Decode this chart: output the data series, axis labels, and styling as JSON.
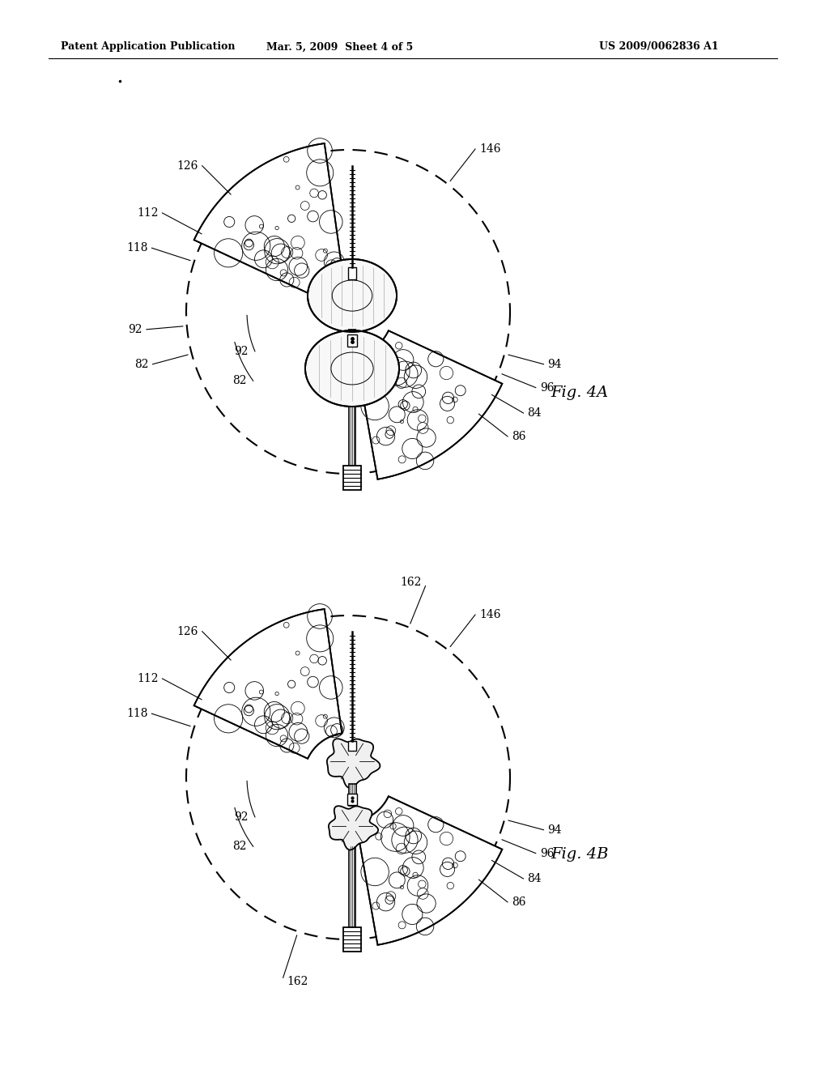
{
  "bg_color": "#ffffff",
  "header_left": "Patent Application Publication",
  "header_mid": "Mar. 5, 2009  Sheet 4 of 5",
  "header_right": "US 2009/0062836 A1",
  "fig4A_label": "Fig. 4A",
  "fig4B_label": "Fig. 4B",
  "page_width": 10.24,
  "page_height": 13.2
}
